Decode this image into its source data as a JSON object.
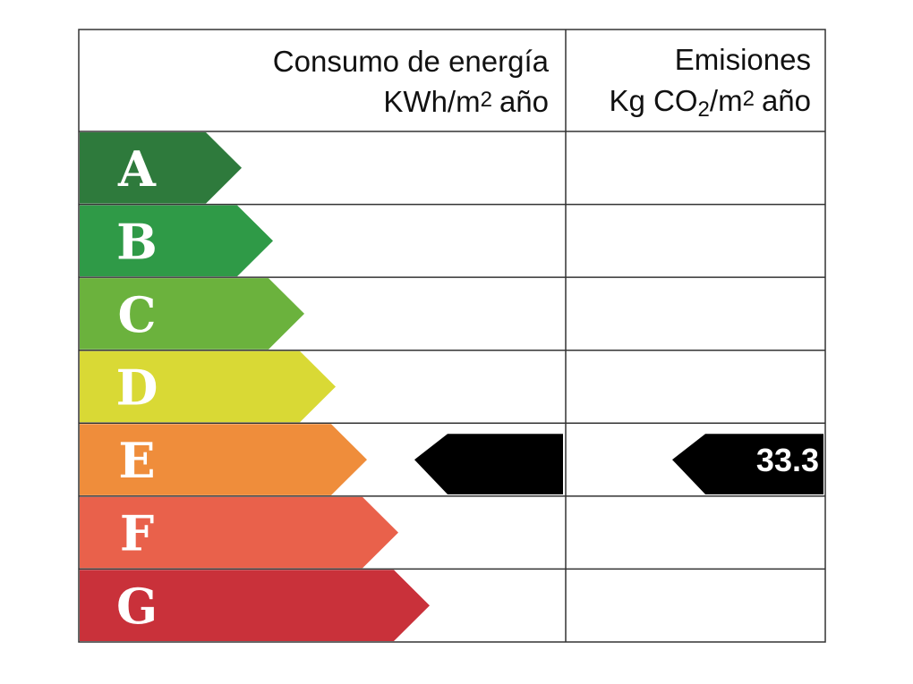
{
  "header": {
    "consumption": {
      "title": "Consumo de energía",
      "unit": [
        "KWh/m",
        "2",
        "año"
      ]
    },
    "emissions": {
      "title": "Emisiones",
      "unit": [
        "Kg CO",
        "2",
        "/m",
        "2",
        "año"
      ]
    }
  },
  "ratings": [
    {
      "letter": "A",
      "color": "#2e7a3c"
    },
    {
      "letter": "B",
      "color": "#2f9a47"
    },
    {
      "letter": "C",
      "color": "#6bb23d"
    },
    {
      "letter": "D",
      "color": "#d9d935"
    },
    {
      "letter": "E",
      "color": "#ef8d3b"
    },
    {
      "letter": "F",
      "color": "#e9614b"
    },
    {
      "letter": "G",
      "color": "#c9313a"
    }
  ],
  "indicator": {
    "row": 4,
    "emissions_value": 33.3
  }
}
